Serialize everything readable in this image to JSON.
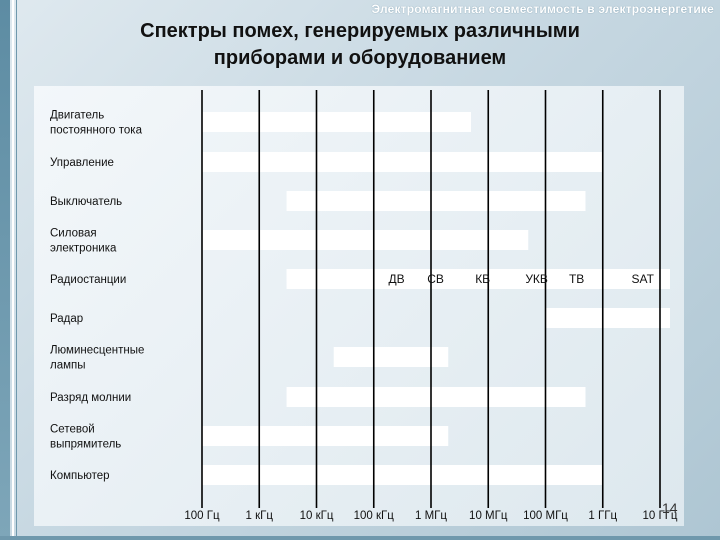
{
  "header_note": "Электромагнитная совместимость в электроэнергетике",
  "title_lines": [
    "Спектры помех, генерируемых различными",
    "приборами и оборудованием"
  ],
  "page_number": "14",
  "colors": {
    "bar": "#ffffff",
    "gridline": "#000000",
    "background": "#c7d8e2"
  },
  "chart_data": {
    "type": "bar",
    "orientation": "horizontal-range",
    "x_scale": "log",
    "x_tick_labels": [
      "100 Гц",
      "1 кГц",
      "10 кГц",
      "100 кГц",
      "1 МГц",
      "10 МГц",
      "100 МГц",
      "1 ГГц",
      "10 ГГц"
    ],
    "x_tick_values": [
      100,
      1000,
      10000,
      100000,
      1000000,
      10000000,
      100000000,
      1000000000,
      10000000000
    ],
    "xlim": [
      100,
      10000000000
    ],
    "grid": true,
    "categories": [
      [
        "Двигатель",
        "постоянного тока"
      ],
      [
        "Управление"
      ],
      [
        "Выключатель"
      ],
      [
        "Силовая",
        "электроника"
      ],
      [
        "Радиостанции"
      ],
      [
        "Радар"
      ],
      [
        "Люминесцентные",
        "лампы"
      ],
      [
        "Разряд молнии"
      ],
      [
        "Сетевой",
        "выпрямитель"
      ],
      [
        "Компьютер"
      ]
    ],
    "ranges": [
      [
        100,
        5000000
      ],
      [
        100,
        1000000000
      ],
      [
        3000,
        500000000
      ],
      [
        100,
        50000000
      ],
      [
        3000,
        10000000000
      ],
      [
        100000000,
        10000000000
      ],
      [
        20000,
        2000000
      ],
      [
        3000,
        500000000
      ],
      [
        100,
        2000000
      ],
      [
        100,
        1000000000
      ]
    ],
    "band_labels": [
      {
        "label": "ДВ",
        "x": 250000
      },
      {
        "label": "СВ",
        "x": 1200000
      },
      {
        "label": "КВ",
        "x": 8000000
      },
      {
        "label": "УКВ",
        "x": 70000000
      },
      {
        "label": "ТВ",
        "x": 350000000
      },
      {
        "label": "SAT",
        "x": 5000000000
      }
    ]
  }
}
